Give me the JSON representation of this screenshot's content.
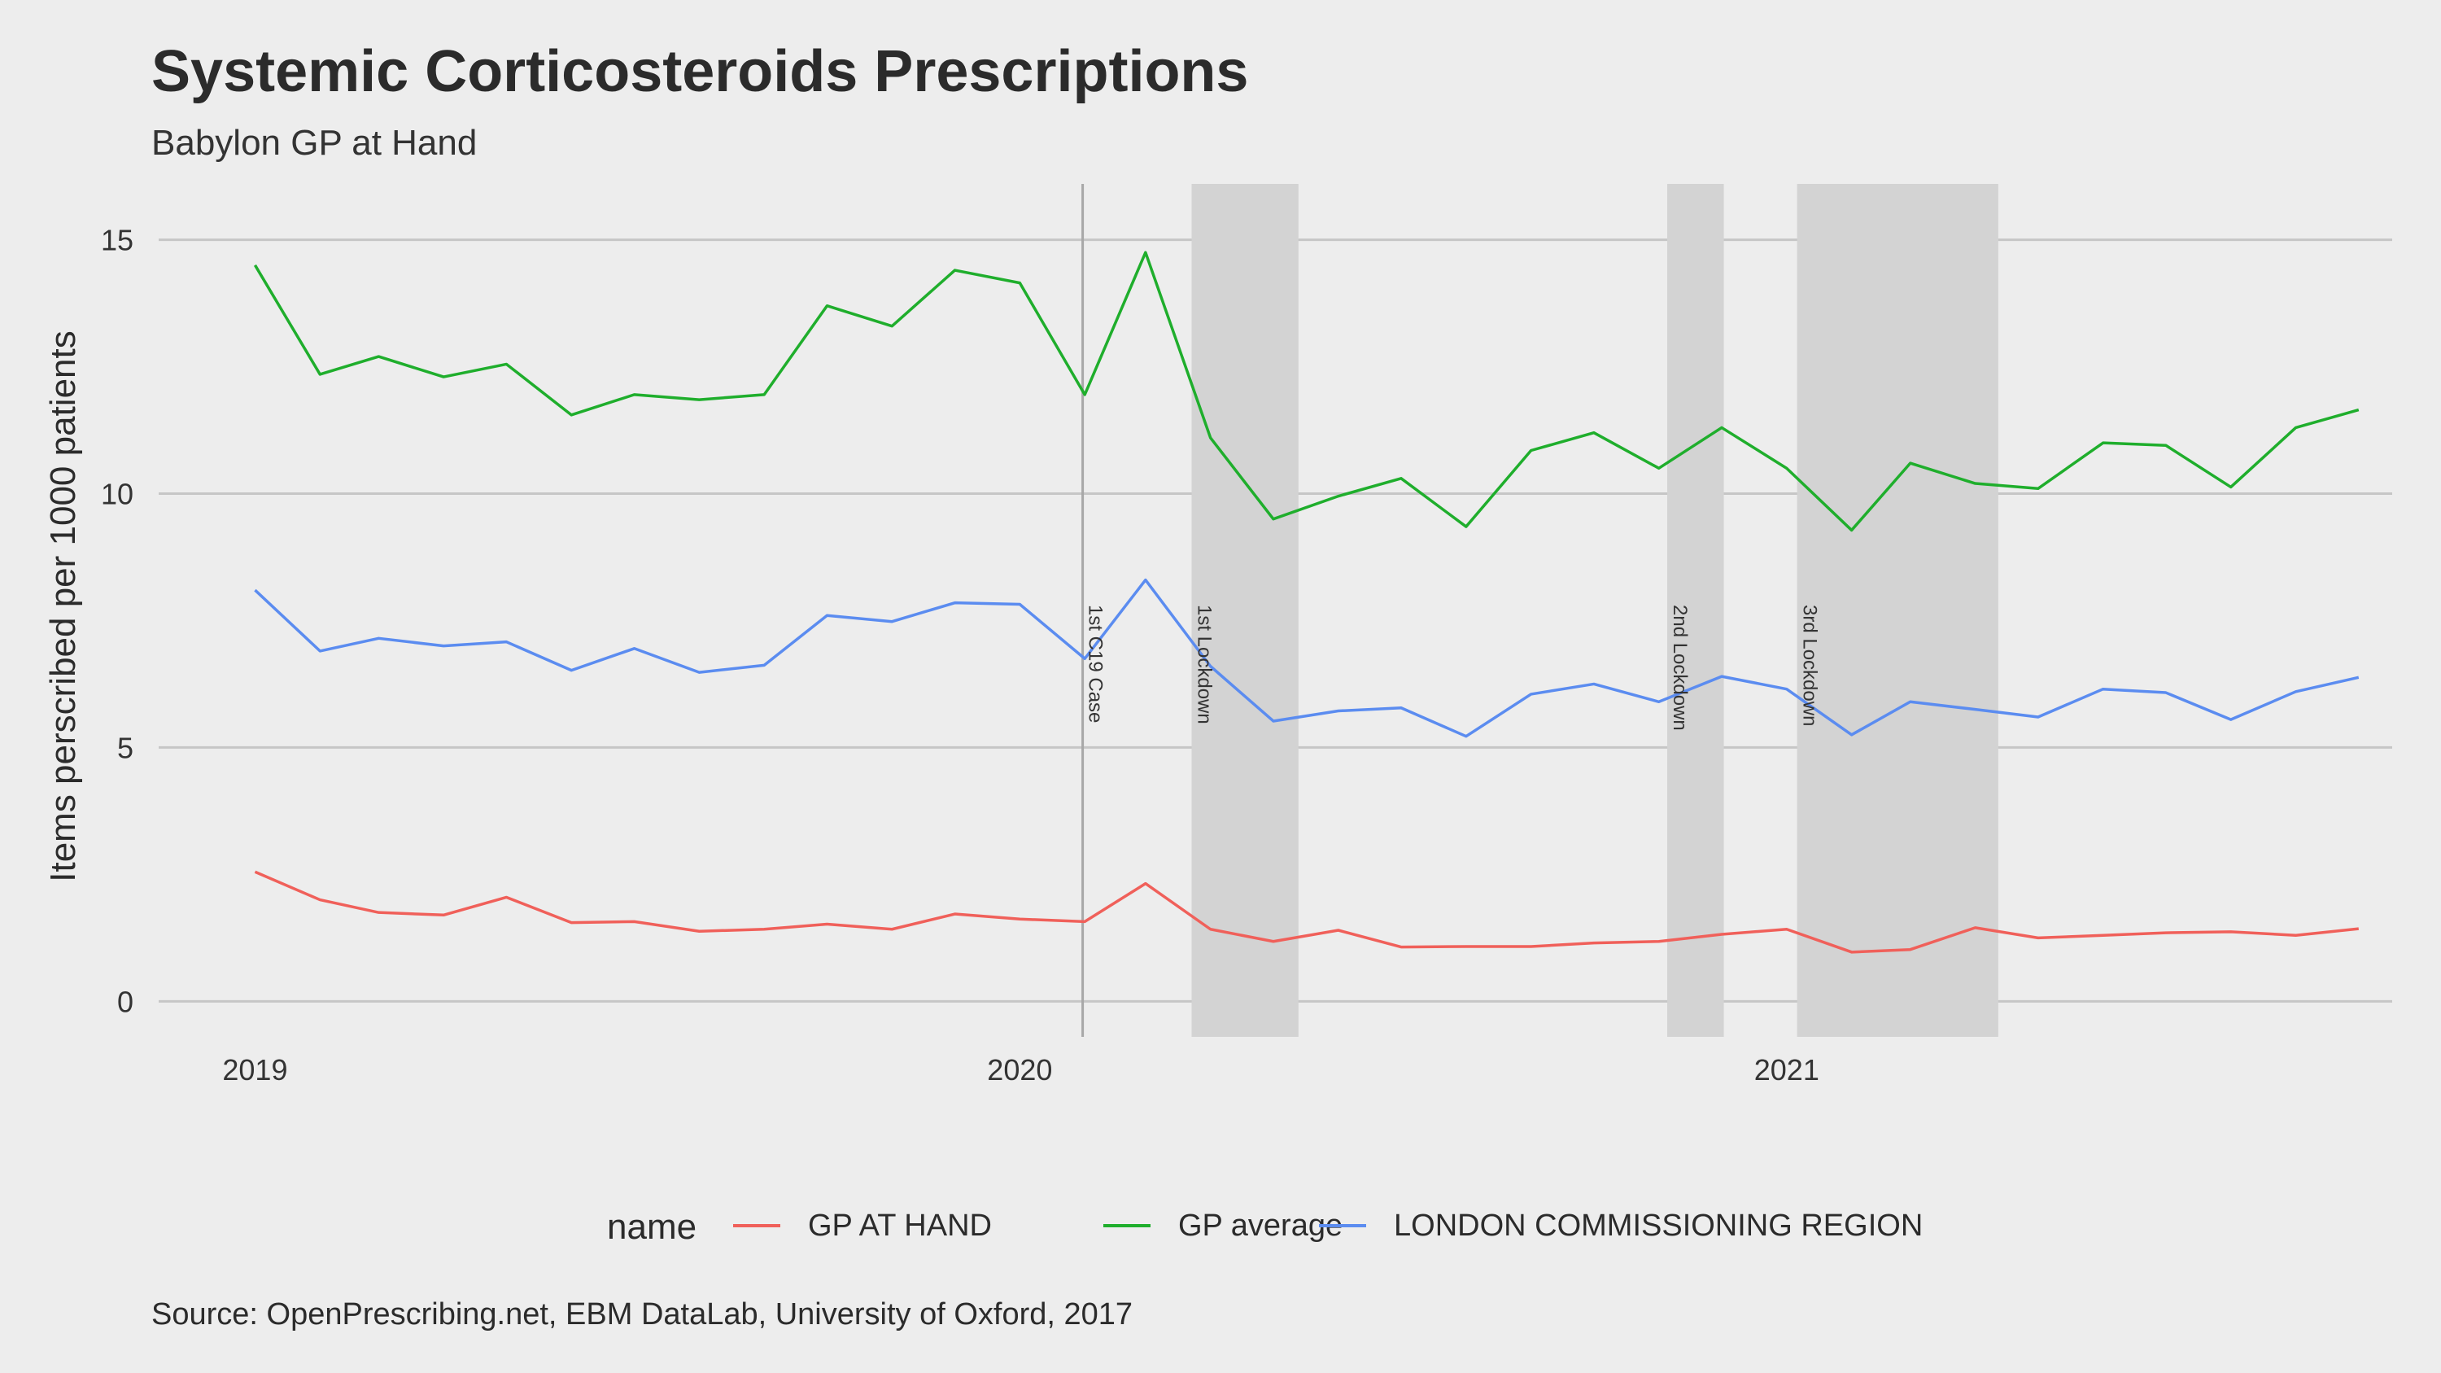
{
  "chart_data": {
    "type": "line",
    "title": "Systemic Corticosteroids Prescriptions",
    "subtitle": "Babylon GP at Hand",
    "ylabel": "Items perscribed per 1000 patients",
    "xlabel": "",
    "caption": "Source: OpenPrescribing.net, EBM DataLab, University of Oxford, 2017",
    "ylim": [
      -0.7,
      16.1
    ],
    "xlim": [
      "2018-11-16",
      "2021-10-17"
    ],
    "yticks": [
      0,
      5,
      10,
      15
    ],
    "xticks": [
      "2019",
      "2020",
      "2021"
    ],
    "grid": true,
    "legend": {
      "title": "name",
      "position": "bottom"
    },
    "x": [
      "2019-01-01",
      "2019-02-01",
      "2019-03-01",
      "2019-04-01",
      "2019-05-01",
      "2019-06-01",
      "2019-07-01",
      "2019-08-01",
      "2019-09-01",
      "2019-10-01",
      "2019-11-01",
      "2019-12-01",
      "2020-01-01",
      "2020-02-01",
      "2020-03-01",
      "2020-04-01",
      "2020-05-01",
      "2020-06-01",
      "2020-07-01",
      "2020-08-01",
      "2020-09-01",
      "2020-10-01",
      "2020-11-01",
      "2020-12-01",
      "2021-01-01",
      "2021-02-01",
      "2021-03-01",
      "2021-04-01",
      "2021-05-01",
      "2021-06-01",
      "2021-07-01",
      "2021-08-01",
      "2021-09-01",
      "2021-10-01"
    ],
    "series": [
      {
        "name": "GP AT HAND",
        "color": "#f0605a",
        "values": [
          2.55,
          2.0,
          1.75,
          1.7,
          2.05,
          1.55,
          1.57,
          1.38,
          1.42,
          1.52,
          1.42,
          1.72,
          1.62,
          1.57,
          2.32,
          1.42,
          1.18,
          1.4,
          1.07,
          1.08,
          1.08,
          1.15,
          1.18,
          1.32,
          1.42,
          0.97,
          1.02,
          1.45,
          1.25,
          1.3,
          1.35,
          1.37,
          1.3,
          1.43
        ]
      },
      {
        "name": "GP average",
        "color": "#1fae2c",
        "values": [
          14.5,
          12.35,
          12.7,
          12.3,
          12.55,
          11.55,
          11.95,
          11.85,
          11.95,
          13.7,
          13.3,
          14.4,
          14.15,
          11.95,
          14.75,
          11.1,
          9.5,
          9.95,
          10.3,
          9.35,
          10.85,
          11.2,
          10.5,
          11.3,
          10.5,
          9.28,
          10.6,
          10.2,
          10.1,
          11.0,
          10.95,
          10.13,
          11.3,
          11.65
        ]
      },
      {
        "name": "LONDON COMMISSIONING REGION",
        "color": "#5b8cf0",
        "values": [
          8.1,
          6.9,
          7.15,
          7.0,
          7.08,
          6.52,
          6.95,
          6.48,
          6.62,
          7.6,
          7.48,
          7.85,
          7.82,
          6.75,
          8.3,
          6.6,
          5.52,
          5.72,
          5.78,
          5.22,
          6.05,
          6.25,
          5.9,
          6.4,
          6.15,
          5.25,
          5.9,
          5.75,
          5.6,
          6.15,
          6.08,
          5.55,
          6.1,
          6.38
        ]
      }
    ],
    "events": [
      {
        "label": "1st C19 Case",
        "type": "line",
        "date": "2020-01-31"
      },
      {
        "label": "1st Lockdown",
        "type": "band",
        "start": "2020-03-23",
        "end": "2020-05-13"
      },
      {
        "label": "2nd Lockdown",
        "type": "band",
        "start": "2020-11-05",
        "end": "2020-12-02"
      },
      {
        "label": "3rd Lockdown",
        "type": "band",
        "start": "2021-01-06",
        "end": "2021-04-12"
      }
    ]
  }
}
